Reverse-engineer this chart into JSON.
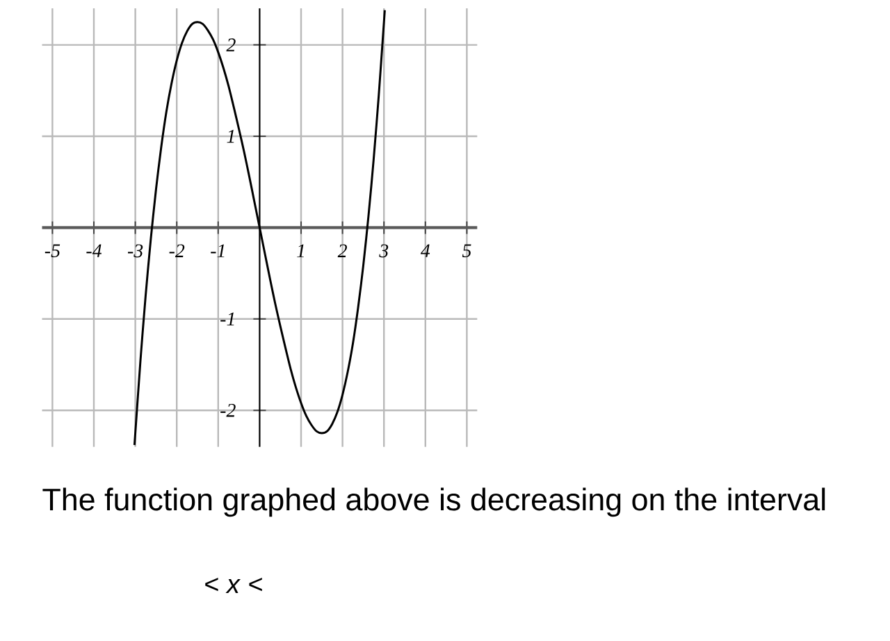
{
  "chart_data": {
    "type": "line",
    "x": [
      -3.02,
      -2.875,
      -2.75,
      -2.625,
      -2.5,
      -2.375,
      -2.25,
      -2.125,
      -2.0,
      -1.875,
      -1.75,
      -1.625,
      -1.5,
      -1.375,
      -1.25,
      -1.125,
      -1.0,
      -0.875,
      -0.75,
      -0.625,
      -0.5,
      -0.375,
      -0.25,
      -0.125,
      0,
      0.125,
      0.25,
      0.375,
      0.5,
      0.625,
      0.75,
      0.875,
      1.0,
      1.125,
      1.25,
      1.375,
      1.5,
      1.625,
      1.75,
      1.875,
      2.0,
      2.125,
      2.25,
      2.375,
      2.5,
      2.625,
      2.75,
      2.875,
      3.0,
      3.02
    ],
    "series": [
      {
        "color": "#000000",
        "values": [
          -2.38,
          -1.45,
          -0.74,
          -0.12,
          0.42,
          0.88,
          1.27,
          1.58,
          1.83,
          2.02,
          2.15,
          2.23,
          2.25,
          2.23,
          2.16,
          2.06,
          1.92,
          1.75,
          1.55,
          1.32,
          1.08,
          0.83,
          0.56,
          0.28,
          0,
          -0.28,
          -0.56,
          -0.83,
          -1.08,
          -1.32,
          -1.55,
          -1.75,
          -1.92,
          -2.06,
          -2.16,
          -2.23,
          -2.25,
          -2.23,
          -2.15,
          -2.02,
          -1.83,
          -1.58,
          -1.27,
          -0.88,
          -0.42,
          0.12,
          0.74,
          1.45,
          2.25,
          2.38
        ]
      }
    ],
    "xlim": [
      -5.25,
      5.25
    ],
    "ylim": [
      -2.4,
      2.4
    ],
    "xticks": [
      -5,
      -4,
      -3,
      -2,
      -1,
      {
        "value": 0,
        "label": null
      },
      1,
      2,
      3,
      4,
      5
    ],
    "yticks": [
      -2,
      -1,
      {
        "value": 0,
        "label": null
      },
      1,
      2
    ],
    "grid": true,
    "marker": "none",
    "line_style": "solid",
    "annotations": [
      "The function graphed above is decreasing on the interval",
      "< *x* <"
    ]
  }
}
